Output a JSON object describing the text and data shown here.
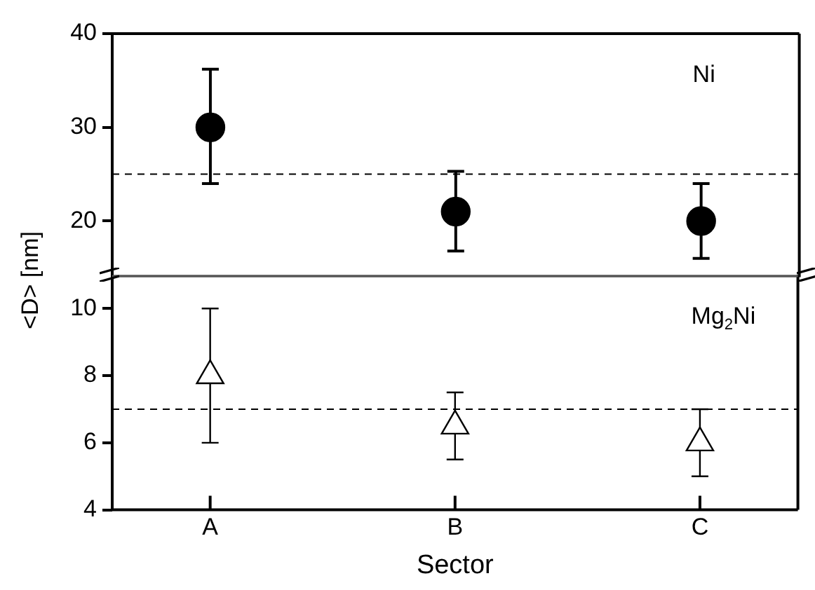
{
  "chart_data": [
    {
      "type": "scatter",
      "ylabel": "<D> [nm]",
      "categories": [
        null,
        null,
        null
      ],
      "tick_labels": "y",
      "ylim": [
        14,
        40
      ],
      "yticks": [
        20,
        30,
        40
      ],
      "grid": false,
      "legend": false,
      "marker": "circle",
      "series": [
        {
          "color": "#000000",
          "values": [
            30,
            21,
            20
          ],
          "errors": [
            [
              24,
              36.2
            ],
            [
              16.8,
              25.3
            ],
            [
              16,
              24
            ]
          ]
        }
      ],
      "ref_lines": [
        {
          "axis": "y",
          "value": 25,
          "color": "#000000",
          "line_style": "dashed"
        }
      ],
      "annotations": [
        "Ni"
      ]
    },
    {
      "type": "scatter",
      "xlabel": "Sector",
      "categories": [
        "A",
        "B",
        "C"
      ],
      "ylim": [
        4,
        11
      ],
      "yticks": [
        4,
        6,
        8,
        10
      ],
      "grid": false,
      "legend": false,
      "marker": "triangle",
      "series": [
        {
          "color": "#000000",
          "values": [
            8,
            6.5,
            6
          ],
          "errors": [
            [
              6,
              10
            ],
            [
              5.5,
              7.5
            ],
            [
              5,
              7
            ]
          ]
        }
      ],
      "ref_lines": [
        {
          "axis": "y",
          "value": 7,
          "color": "#000000",
          "line_style": "dashed"
        }
      ],
      "annotations": [
        "Mg$_{2}$Ni"
      ]
    }
  ]
}
